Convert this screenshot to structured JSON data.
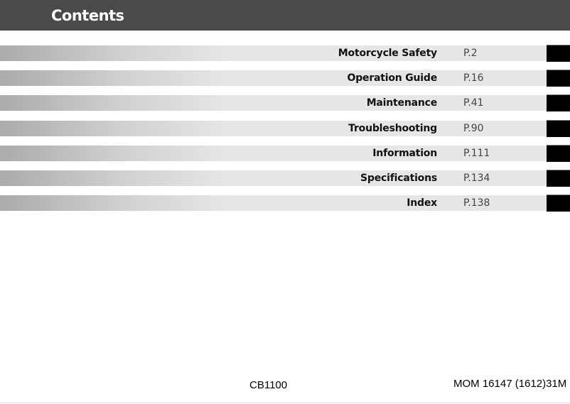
{
  "header": {
    "title": "Contents"
  },
  "entries": [
    {
      "title": "Motorcycle Safety",
      "page": "P.2"
    },
    {
      "title": "Operation Guide",
      "page": "P.16"
    },
    {
      "title": "Maintenance",
      "page": "P.41"
    },
    {
      "title": "Troubleshooting",
      "page": "P.90"
    },
    {
      "title": "Information",
      "page": "P.111"
    },
    {
      "title": "Specifications",
      "page": "P.134"
    },
    {
      "title": "Index",
      "page": "P.138"
    }
  ],
  "footer": {
    "model": "CB1100",
    "code": "MOM 16147 (1612)31M"
  }
}
